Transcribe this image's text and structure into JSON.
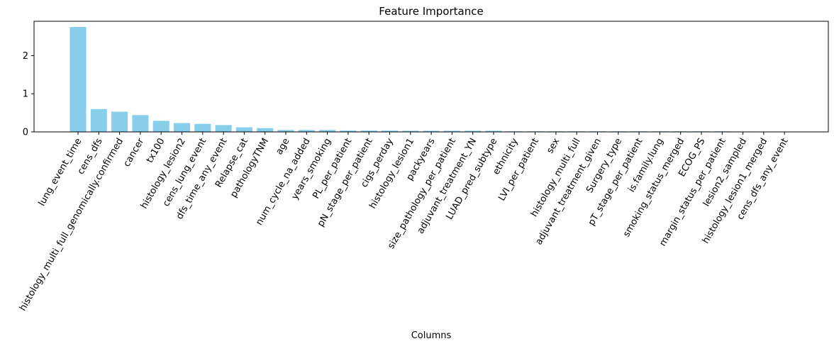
{
  "chart_data": {
    "type": "bar",
    "title": "Feature Importance",
    "xlabel": "Columns",
    "ylabel": "",
    "ylim": [
      0,
      2.9
    ],
    "yticks": [
      0,
      1,
      2
    ],
    "grid": false,
    "bar_color": "#87CEEB",
    "categories": [
      "lung_event_time",
      "cens_dfs",
      "histology_multi_full_genomically.confirmed",
      "cancer",
      "tx100",
      "histology_lesion2",
      "cens_lung_event",
      "dfs_time_any_event",
      "Relapse_cat",
      "pathologyTNM",
      "age",
      "num_cycle_na_added",
      "years_smoking",
      "PL_per_patient",
      "pN_stage_per_patient",
      "cigs_perday",
      "histology_lesion1",
      "packyears",
      "size_pathology_per_patient",
      "adjuvant_treatment_YN",
      "LUAD_pred_subtype",
      "ethnicity",
      "LVI_per_patient",
      "sex",
      "histology_multi_full",
      "adjuvant_treatment_given",
      "Surgery_type",
      "pT_stage_per_patient",
      "is.family.lung",
      "smoking_status_merged",
      "ECOG_PS",
      "margin_status_per_patient",
      "lesion2_sampled",
      "histology_lesion1_merged",
      "cens_dfs_any_event"
    ],
    "values": [
      2.75,
      0.6,
      0.53,
      0.44,
      0.29,
      0.23,
      0.21,
      0.18,
      0.12,
      0.1,
      0.05,
      0.05,
      0.05,
      0.035,
      0.035,
      0.035,
      0.03,
      0.03,
      0.03,
      0.03,
      0.03,
      0.015,
      0.015,
      0.015,
      0.015,
      0.015,
      0.015,
      0.015,
      0.015,
      0.015,
      0.015,
      0.015,
      0.01,
      0.0,
      0.0
    ]
  }
}
